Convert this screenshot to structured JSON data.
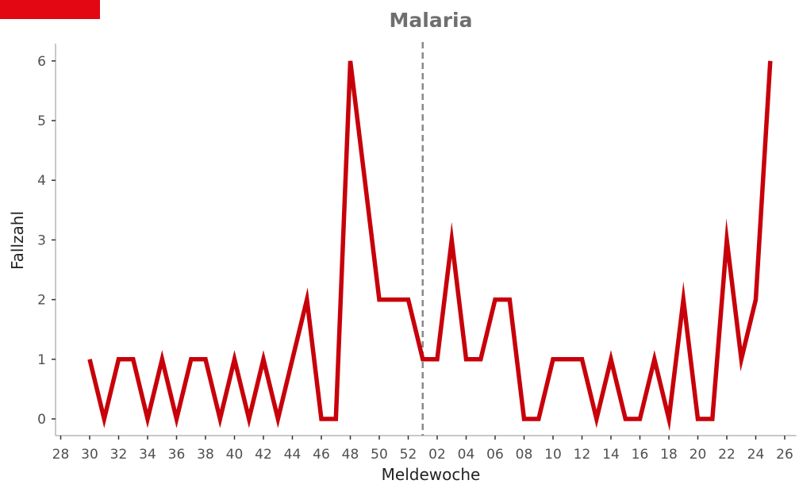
{
  "brand": {
    "accent_color": "#e30613"
  },
  "chart_data": {
    "type": "line",
    "title": "Malaria",
    "xlabel": "Meldewoche",
    "ylabel": "Fallzahl",
    "ylim": [
      0,
      6
    ],
    "yticks": [
      0,
      1,
      2,
      3,
      4,
      5,
      6
    ],
    "xtick_labels": [
      "28",
      "30",
      "32",
      "34",
      "36",
      "38",
      "40",
      "42",
      "44",
      "46",
      "48",
      "50",
      "52",
      "02",
      "04",
      "06",
      "08",
      "10",
      "12",
      "14",
      "16",
      "18",
      "20",
      "22",
      "24",
      "26"
    ],
    "year_boundary": "52/01",
    "grid": false,
    "line_color": "#c8000a",
    "divider_color": "#8a8a8a",
    "series": [
      {
        "x": [
          "30",
          "31",
          "32",
          "33",
          "34",
          "35",
          "36",
          "37",
          "38",
          "39",
          "40",
          "41",
          "42",
          "43",
          "44",
          "45",
          "46",
          "47",
          "48",
          "49",
          "50",
          "51",
          "52",
          "01",
          "02",
          "03",
          "04",
          "05",
          "06",
          "07",
          "08",
          "09",
          "10",
          "11",
          "12",
          "13",
          "14",
          "15",
          "16",
          "17",
          "18",
          "19",
          "20",
          "21",
          "22",
          "23",
          "24",
          "25"
        ],
        "values": [
          1,
          0,
          1,
          1,
          0,
          1,
          0,
          1,
          1,
          0,
          1,
          0,
          1,
          0,
          1,
          2,
          0,
          0,
          6,
          4,
          2,
          2,
          2,
          1,
          1,
          3,
          1,
          1,
          2,
          2,
          0,
          0,
          1,
          1,
          1,
          0,
          1,
          0,
          0,
          1,
          0,
          2,
          0,
          0,
          3,
          1,
          2,
          6
        ]
      }
    ]
  }
}
